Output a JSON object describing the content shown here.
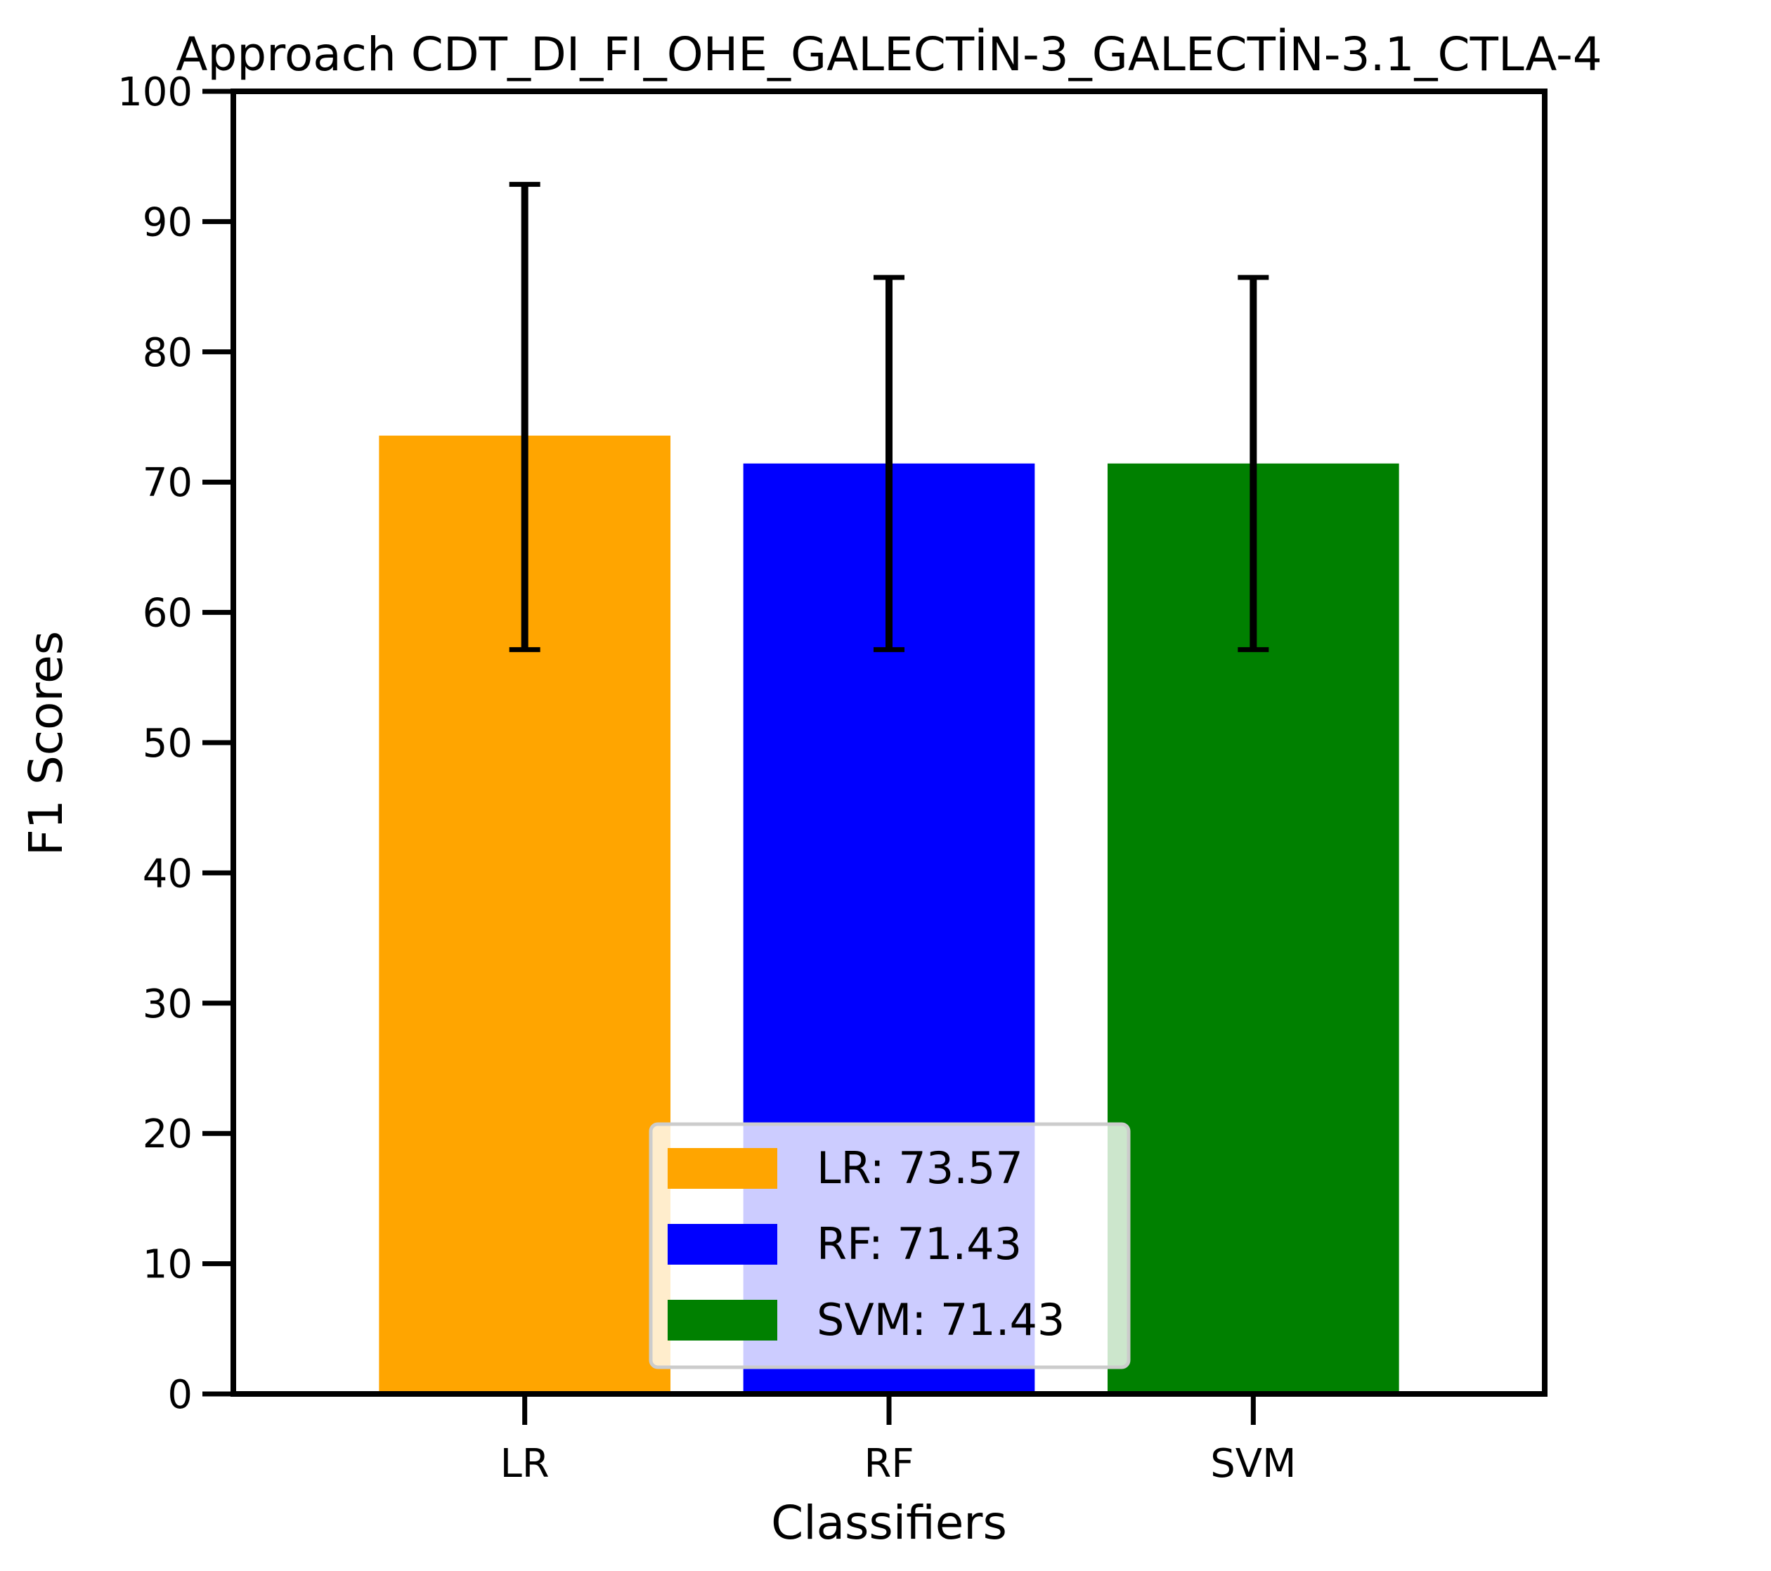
{
  "chart_data": {
    "type": "bar",
    "title": "Approach CDT_DI_FI_OHE_GALECTİN-3_GALECTİN-3.1_CTLA-4",
    "xlabel": "Classifiers",
    "ylabel": "F1 Scores",
    "ylim": [
      0,
      100
    ],
    "yticks": [
      0,
      10,
      20,
      30,
      40,
      50,
      60,
      70,
      80,
      90,
      100
    ],
    "categories": [
      "LR",
      "RF",
      "SVM"
    ],
    "values": [
      73.57,
      71.43,
      71.43
    ],
    "error_low": [
      57.14,
      57.14,
      57.14
    ],
    "error_high": [
      92.86,
      85.71,
      85.71
    ],
    "colors": [
      "#ffa500",
      "#0000ff",
      "#008000"
    ],
    "grid": false,
    "legend": {
      "placement": "lower-center",
      "entries": [
        {
          "label": "LR: 73.57",
          "color": "#ffa500"
        },
        {
          "label": "RF: 71.43",
          "color": "#0000ff"
        },
        {
          "label": "SVM: 71.43",
          "color": "#008000"
        }
      ]
    }
  }
}
